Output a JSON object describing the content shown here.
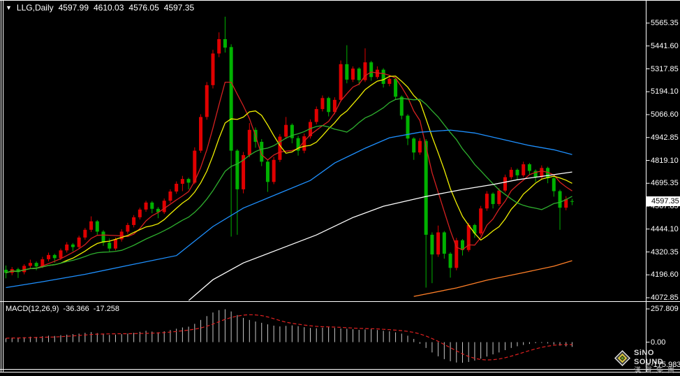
{
  "ohlc_bar": {
    "symbol_period": "LLG,Daily",
    "open": "4597.99",
    "high": "4610.03",
    "low": "4576.05",
    "close": "4597.35"
  },
  "price_axis": {
    "labels": [
      "5565.35",
      "5441.60",
      "5317.85",
      "5194.10",
      "5066.60",
      "4942.85",
      "4819.10",
      "4695.35",
      "4567.85",
      "4444.10",
      "4320.35",
      "4196.60",
      "4072.85"
    ],
    "current_price": "4597.35"
  },
  "macd_panel": {
    "label": "MACD(12,26,9)",
    "macd_value": "-36.366",
    "signal_value": "-17.258",
    "axis_labels": [
      "257.809",
      "0.00",
      "-175.983"
    ]
  },
  "watermark": {
    "brand": "SiNO SOUND",
    "brand_cn": "漢聲集團"
  },
  "colors": {
    "background": "#000000",
    "frame": "#ffffff",
    "candle_up": "#e00000",
    "candle_down": "#00b200",
    "ma_red": "#d42020",
    "ma_yellow": "#f0f000",
    "ma_green": "#2eaf2e",
    "ma_blue": "#1e90ff",
    "ma_white": "#ffffff",
    "ma_orange": "#ff7f27",
    "macd_histogram": "#c8c8c8",
    "macd_signal": "#e02020"
  },
  "chart_data": {
    "type": "candlestick",
    "symbol": "LLG",
    "period": "Daily",
    "candle_convention": "red=up green=down",
    "price_range": [
      4072.85,
      5565.35
    ],
    "candles": [
      [
        4225,
        4248,
        4178,
        4208
      ],
      [
        4208,
        4240,
        4195,
        4228
      ],
      [
        4228,
        4236,
        4180,
        4212
      ],
      [
        4212,
        4255,
        4200,
        4246
      ],
      [
        4246,
        4280,
        4228,
        4262
      ],
      [
        4262,
        4270,
        4222,
        4243
      ],
      [
        4243,
        4295,
        4235,
        4282
      ],
      [
        4282,
        4318,
        4270,
        4305
      ],
      [
        4305,
        4312,
        4262,
        4288
      ],
      [
        4288,
        4340,
        4278,
        4330
      ],
      [
        4330,
        4375,
        4318,
        4362
      ],
      [
        4362,
        4370,
        4325,
        4348
      ],
      [
        4348,
        4410,
        4340,
        4400
      ],
      [
        4400,
        4452,
        4388,
        4442
      ],
      [
        4442,
        4515,
        4430,
        4488
      ],
      [
        4488,
        4495,
        4415,
        4432
      ],
      [
        4432,
        4440,
        4355,
        4372
      ],
      [
        4372,
        4395,
        4322,
        4340
      ],
      [
        4340,
        4400,
        4330,
        4390
      ],
      [
        4390,
        4445,
        4378,
        4432
      ],
      [
        4432,
        4480,
        4420,
        4468
      ],
      [
        4468,
        4522,
        4455,
        4510
      ],
      [
        4510,
        4562,
        4498,
        4552
      ],
      [
        4552,
        4600,
        4540,
        4590
      ],
      [
        4590,
        4598,
        4532,
        4556
      ],
      [
        4556,
        4565,
        4505,
        4538
      ],
      [
        4538,
        4612,
        4528,
        4600
      ],
      [
        4600,
        4662,
        4588,
        4650
      ],
      [
        4650,
        4705,
        4638,
        4692
      ],
      [
        4692,
        4735,
        4652,
        4718
      ],
      [
        4718,
        4725,
        4662,
        4698
      ],
      [
        4698,
        4890,
        4690,
        4872
      ],
      [
        4872,
        5070,
        4860,
        5055
      ],
      [
        5055,
        5245,
        5040,
        5228
      ],
      [
        5228,
        5420,
        5210,
        5400
      ],
      [
        5400,
        5515,
        5380,
        5478
      ],
      [
        5478,
        5600,
        5405,
        5432
      ],
      [
        5435,
        5450,
        4405,
        4872
      ],
      [
        4872,
        4880,
        4415,
        4662
      ],
      [
        4662,
        4865,
        4640,
        4848
      ],
      [
        4848,
        5022,
        4836,
        4985
      ],
      [
        4985,
        4998,
        4888,
        4920
      ],
      [
        4920,
        4935,
        4788,
        4812
      ],
      [
        4812,
        4825,
        4648,
        4702
      ],
      [
        4702,
        4838,
        4690,
        4822
      ],
      [
        4822,
        4962,
        4810,
        4948
      ],
      [
        4948,
        5055,
        4935,
        5012
      ],
      [
        5012,
        5020,
        4912,
        4940
      ],
      [
        4940,
        4952,
        4845,
        4872
      ],
      [
        4872,
        4965,
        4858,
        4950
      ],
      [
        4950,
        5042,
        4938,
        5028
      ],
      [
        5028,
        5112,
        5015,
        5098
      ],
      [
        5098,
        5172,
        5085,
        5158
      ],
      [
        5158,
        5165,
        5058,
        5082
      ],
      [
        5082,
        5162,
        5070,
        5148
      ],
      [
        5148,
        5362,
        5138,
        5342
      ],
      [
        5342,
        5445,
        5238,
        5258
      ],
      [
        5258,
        5330,
        5245,
        5318
      ],
      [
        5318,
        5325,
        5228,
        5255
      ],
      [
        5255,
        5428,
        5245,
        5352
      ],
      [
        5352,
        5360,
        5252,
        5272
      ],
      [
        5272,
        5330,
        5262,
        5312
      ],
      [
        5312,
        5320,
        5215,
        5235
      ],
      [
        5235,
        5282,
        5222,
        5262
      ],
      [
        5262,
        5270,
        5148,
        5165
      ],
      [
        5165,
        5172,
        5042,
        5062
      ],
      [
        5062,
        5070,
        4902,
        4938
      ],
      [
        4938,
        4945,
        4822,
        4862
      ],
      [
        4862,
        4940,
        4850,
        4925
      ],
      [
        4925,
        4935,
        4128,
        4415
      ],
      [
        4415,
        4428,
        4152,
        4308
      ],
      [
        4308,
        4465,
        4295,
        4428
      ],
      [
        4428,
        4435,
        4285,
        4312
      ],
      [
        4312,
        4320,
        4182,
        4235
      ],
      [
        4235,
        4398,
        4222,
        4385
      ],
      [
        4385,
        4392,
        4302,
        4332
      ],
      [
        4332,
        4480,
        4322,
        4468
      ],
      [
        4468,
        4475,
        4398,
        4422
      ],
      [
        4422,
        4572,
        4412,
        4558
      ],
      [
        4558,
        4652,
        4545,
        4638
      ],
      [
        4638,
        4645,
        4558,
        4582
      ],
      [
        4582,
        4668,
        4572,
        4655
      ],
      [
        4655,
        4742,
        4645,
        4728
      ],
      [
        4728,
        4782,
        4715,
        4768
      ],
      [
        4768,
        4775,
        4712,
        4738
      ],
      [
        4738,
        4812,
        4728,
        4798
      ],
      [
        4798,
        4805,
        4742,
        4762
      ],
      [
        4762,
        4770,
        4702,
        4728
      ],
      [
        4728,
        4792,
        4718,
        4778
      ],
      [
        4778,
        4785,
        4695,
        4722
      ],
      [
        4722,
        4730,
        4622,
        4652
      ],
      [
        4652,
        4660,
        4442,
        4562
      ],
      [
        4562,
        4625,
        4548,
        4608
      ],
      [
        4597.99,
        4610.03,
        4576.05,
        4597.35
      ]
    ],
    "ma_lines": [
      {
        "name": "ma-fast-red",
        "style": "sma",
        "period": 6,
        "color": "ma_red"
      },
      {
        "name": "ma-mid-yellow",
        "style": "sma",
        "period": 10,
        "color": "ma_yellow"
      },
      {
        "name": "ma-slow-green",
        "style": "sma",
        "period": 20,
        "color": "ma_green"
      },
      {
        "name": "ma-blue",
        "style": "points",
        "color": "ma_blue",
        "points": [
          [
            0,
            4128
          ],
          [
            6,
            4160
          ],
          [
            13,
            4200
          ],
          [
            20,
            4248
          ],
          [
            28,
            4302
          ],
          [
            34,
            4460
          ],
          [
            39,
            4560
          ],
          [
            45,
            4642
          ],
          [
            50,
            4710
          ],
          [
            54,
            4805
          ],
          [
            59,
            4885
          ],
          [
            63,
            4942
          ],
          [
            68,
            4972
          ],
          [
            73,
            4984
          ],
          [
            77,
            4968
          ],
          [
            82,
            4930
          ],
          [
            86,
            4900
          ],
          [
            90,
            4877
          ],
          [
            93,
            4851
          ]
        ]
      },
      {
        "name": "ma-white",
        "style": "points",
        "color": "ma_white",
        "points": [
          [
            30,
            4057
          ],
          [
            34,
            4171
          ],
          [
            39,
            4262
          ],
          [
            45,
            4338
          ],
          [
            51,
            4414
          ],
          [
            57,
            4509
          ],
          [
            62,
            4570
          ],
          [
            69,
            4623
          ],
          [
            75,
            4661
          ],
          [
            80,
            4688
          ],
          [
            84,
            4714
          ],
          [
            89,
            4737
          ],
          [
            93,
            4756
          ]
        ]
      },
      {
        "name": "ma-orange",
        "style": "points",
        "color": "ma_orange",
        "points": [
          [
            67,
            4080
          ],
          [
            74,
            4126
          ],
          [
            79,
            4168
          ],
          [
            85,
            4209
          ],
          [
            90,
            4244
          ],
          [
            93,
            4274
          ]
        ]
      }
    ],
    "macd": {
      "axis_range": [
        -175.983,
        257.809
      ],
      "signal_period": 9,
      "histogram": [
        30,
        34,
        32,
        38,
        42,
        40,
        46,
        50,
        48,
        54,
        58,
        62,
        66,
        72,
        78,
        70,
        62,
        56,
        58,
        62,
        66,
        72,
        80,
        88,
        82,
        76,
        84,
        94,
        104,
        114,
        120,
        142,
        172,
        202,
        230,
        248,
        255,
        238,
        210,
        188,
        172,
        160,
        150,
        138,
        128,
        122,
        126,
        130,
        124,
        116,
        110,
        108,
        112,
        116,
        110,
        106,
        104,
        100,
        95,
        98,
        100,
        94,
        88,
        84,
        76,
        66,
        50,
        25,
        -12,
        -45,
        -80,
        -110,
        -132,
        -148,
        -158,
        -160,
        -154,
        -143,
        -128,
        -112,
        -95,
        -80,
        -62,
        -45,
        -32,
        -22,
        -14,
        -8,
        -6,
        -10,
        -18,
        -27,
        -33,
        -36.4
      ]
    }
  }
}
